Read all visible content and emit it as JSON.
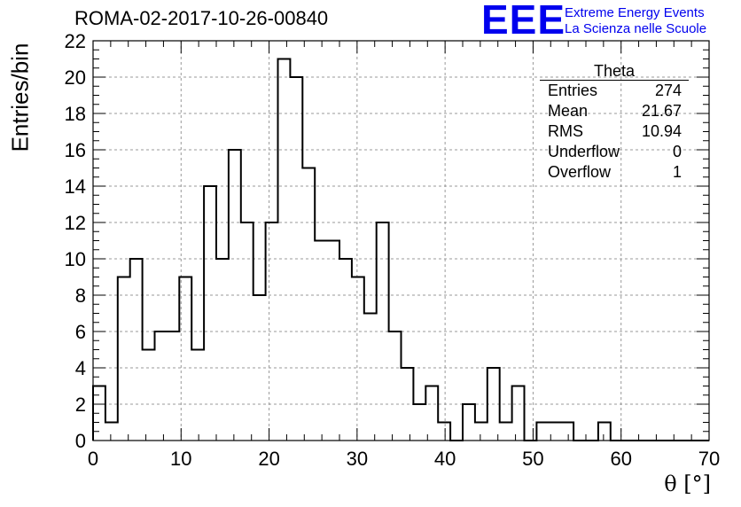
{
  "run_title": "ROMA-02-2017-10-26-00840",
  "logo": {
    "mark": "EEE",
    "line1": "Extreme Energy Events",
    "line2": "La Scienza nelle Scuole",
    "color": "#0000ee"
  },
  "stats": {
    "title": "Theta",
    "rows": [
      {
        "label": "Entries",
        "value": "274"
      },
      {
        "label": "Mean",
        "value": "21.67"
      },
      {
        "label": "RMS",
        "value": "10.94"
      },
      {
        "label": "Underflow",
        "value": "0"
      },
      {
        "label": "Overflow",
        "value": "1"
      }
    ]
  },
  "chart_data": {
    "type": "bar",
    "title": "ROMA-02-2017-10-26-00840",
    "xlabel": "θ [°]",
    "ylabel": "Entries/bin",
    "xlim": [
      0,
      70
    ],
    "ylim": [
      0,
      22
    ],
    "bin_width": 1.4,
    "x_ticks": [
      0,
      10,
      20,
      30,
      40,
      50,
      60,
      70
    ],
    "y_ticks": [
      0,
      2,
      4,
      6,
      8,
      10,
      12,
      14,
      16,
      18,
      20,
      22
    ],
    "grid": true,
    "values": [
      3,
      1,
      9,
      10,
      5,
      6,
      6,
      9,
      5,
      14,
      10,
      16,
      12,
      8,
      12,
      21,
      20,
      15,
      11,
      11,
      10,
      9,
      7,
      12,
      6,
      4,
      2,
      3,
      1,
      0,
      2,
      1,
      4,
      1,
      3,
      0,
      1,
      1,
      1,
      0,
      0,
      1,
      0,
      0,
      0,
      0,
      0,
      0,
      0,
      0
    ],
    "line_color": "#000000"
  }
}
